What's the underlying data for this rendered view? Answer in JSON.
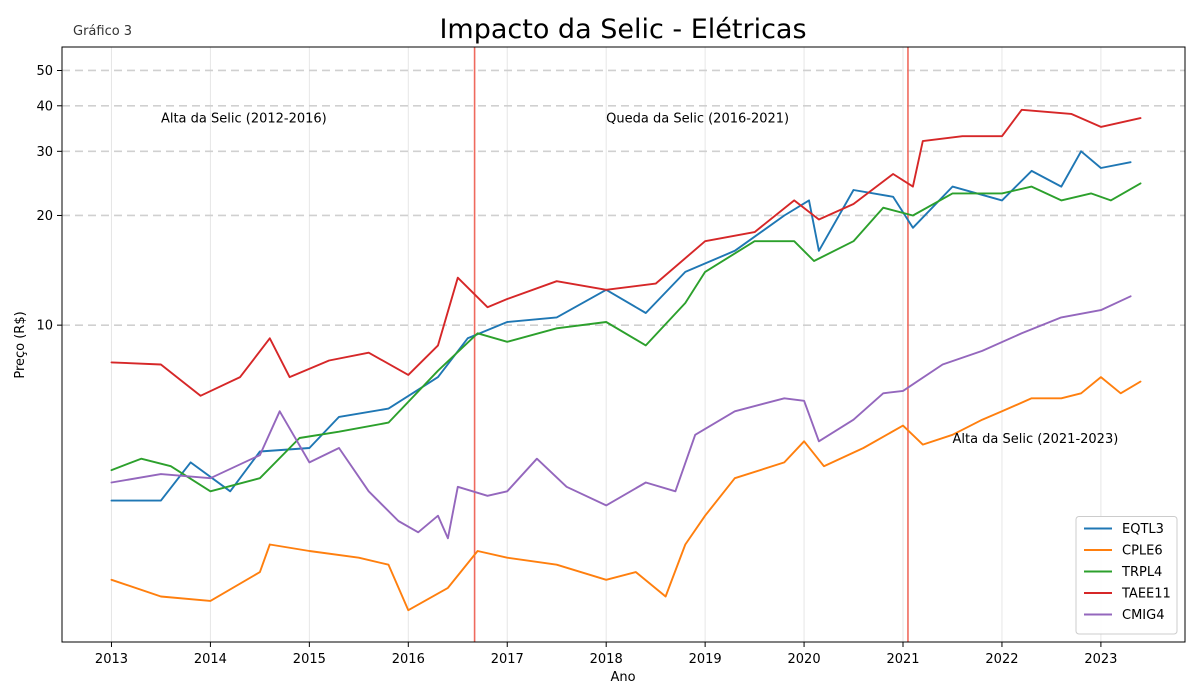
{
  "chart_data": {
    "type": "line",
    "title": "Impacto da Selic - Elétricas",
    "subtitle": "Gráfico 3",
    "xlabel": "Ano",
    "ylabel": "Preço (R$)",
    "y_scale": "log",
    "ylim": [
      1.35,
      58
    ],
    "y_ticks": [
      10,
      20,
      30,
      40,
      50
    ],
    "xlim": [
      2012.5,
      2023.85
    ],
    "x_ticks": [
      "2013",
      "2014",
      "2015",
      "2016",
      "2017",
      "2018",
      "2019",
      "2020",
      "2021",
      "2022",
      "2023"
    ],
    "grid": "dashed horizontal at labeled y ticks",
    "vertical_lines": [
      {
        "x": 2016.67,
        "color": "#ef6a5e"
      },
      {
        "x": 2021.05,
        "color": "#ef6a5e"
      }
    ],
    "annotations": [
      {
        "text": "Alta da Selic (2012-2016)",
        "x": 2013.5,
        "y": 36
      },
      {
        "text": "Queda da Selic (2016-2021)",
        "x": 2018.0,
        "y": 36
      },
      {
        "text": "Alta da Selic (2021-2023)",
        "x": 2021.5,
        "y": 4.75
      }
    ],
    "legend_position": "lower-right",
    "series": [
      {
        "name": "EQTL3",
        "color": "#1f77b4",
        "points": [
          [
            2013.0,
            3.3
          ],
          [
            2013.5,
            3.3
          ],
          [
            2013.8,
            4.2
          ],
          [
            2014.2,
            3.5
          ],
          [
            2014.5,
            4.5
          ],
          [
            2015.0,
            4.6
          ],
          [
            2015.3,
            5.6
          ],
          [
            2015.8,
            5.9
          ],
          [
            2016.3,
            7.2
          ],
          [
            2016.6,
            9.2
          ],
          [
            2017.0,
            10.2
          ],
          [
            2017.5,
            10.5
          ],
          [
            2018.0,
            12.5
          ],
          [
            2018.4,
            10.8
          ],
          [
            2018.8,
            14
          ],
          [
            2019.3,
            16
          ],
          [
            2019.8,
            20
          ],
          [
            2020.05,
            22
          ],
          [
            2020.15,
            16
          ],
          [
            2020.5,
            23.5
          ],
          [
            2020.9,
            22.5
          ],
          [
            2021.1,
            18.5
          ],
          [
            2021.5,
            24
          ],
          [
            2022.0,
            22
          ],
          [
            2022.3,
            26.5
          ],
          [
            2022.6,
            24
          ],
          [
            2022.8,
            30
          ],
          [
            2023.0,
            27
          ],
          [
            2023.3,
            28
          ]
        ]
      },
      {
        "name": "CPLE6",
        "color": "#ff7f0e",
        "points": [
          [
            2013.0,
            2.0
          ],
          [
            2013.5,
            1.8
          ],
          [
            2014.0,
            1.75
          ],
          [
            2014.5,
            2.1
          ],
          [
            2014.6,
            2.5
          ],
          [
            2015.0,
            2.4
          ],
          [
            2015.5,
            2.3
          ],
          [
            2015.8,
            2.2
          ],
          [
            2016.0,
            1.65
          ],
          [
            2016.4,
            1.9
          ],
          [
            2016.7,
            2.4
          ],
          [
            2017.0,
            2.3
          ],
          [
            2017.5,
            2.2
          ],
          [
            2018.0,
            2.0
          ],
          [
            2018.3,
            2.1
          ],
          [
            2018.6,
            1.8
          ],
          [
            2018.8,
            2.5
          ],
          [
            2019.0,
            3.0
          ],
          [
            2019.3,
            3.8
          ],
          [
            2019.8,
            4.2
          ],
          [
            2020.0,
            4.8
          ],
          [
            2020.2,
            4.1
          ],
          [
            2020.6,
            4.6
          ],
          [
            2021.0,
            5.3
          ],
          [
            2021.2,
            4.7
          ],
          [
            2021.5,
            5.0
          ],
          [
            2021.8,
            5.5
          ],
          [
            2022.0,
            5.8
          ],
          [
            2022.3,
            6.3
          ],
          [
            2022.6,
            6.3
          ],
          [
            2022.8,
            6.5
          ],
          [
            2023.0,
            7.2
          ],
          [
            2023.2,
            6.5
          ],
          [
            2023.4,
            7.0
          ]
        ]
      },
      {
        "name": "TRPL4",
        "color": "#2ca02c",
        "points": [
          [
            2013.0,
            4.0
          ],
          [
            2013.3,
            4.3
          ],
          [
            2013.6,
            4.1
          ],
          [
            2014.0,
            3.5
          ],
          [
            2014.5,
            3.8
          ],
          [
            2014.9,
            4.9
          ],
          [
            2015.3,
            5.1
          ],
          [
            2015.8,
            5.4
          ],
          [
            2016.3,
            7.5
          ],
          [
            2016.7,
            9.5
          ],
          [
            2017.0,
            9.0
          ],
          [
            2017.5,
            9.8
          ],
          [
            2018.0,
            10.2
          ],
          [
            2018.4,
            8.8
          ],
          [
            2018.8,
            11.5
          ],
          [
            2019.0,
            14
          ],
          [
            2019.5,
            17
          ],
          [
            2019.9,
            17
          ],
          [
            2020.1,
            15
          ],
          [
            2020.5,
            17
          ],
          [
            2020.8,
            21
          ],
          [
            2021.1,
            20
          ],
          [
            2021.5,
            23
          ],
          [
            2022.0,
            23
          ],
          [
            2022.3,
            24
          ],
          [
            2022.6,
            22
          ],
          [
            2022.9,
            23
          ],
          [
            2023.1,
            22
          ],
          [
            2023.4,
            24.5
          ]
        ]
      },
      {
        "name": "TAEE11",
        "color": "#d62728",
        "points": [
          [
            2013.0,
            7.9
          ],
          [
            2013.5,
            7.8
          ],
          [
            2013.9,
            6.4
          ],
          [
            2014.3,
            7.2
          ],
          [
            2014.6,
            9.2
          ],
          [
            2014.8,
            7.2
          ],
          [
            2015.2,
            8.0
          ],
          [
            2015.6,
            8.4
          ],
          [
            2016.0,
            7.3
          ],
          [
            2016.3,
            8.8
          ],
          [
            2016.5,
            13.5
          ],
          [
            2016.8,
            11.2
          ],
          [
            2017.0,
            11.8
          ],
          [
            2017.5,
            13.2
          ],
          [
            2018.0,
            12.5
          ],
          [
            2018.5,
            13
          ],
          [
            2019.0,
            17
          ],
          [
            2019.5,
            18
          ],
          [
            2019.9,
            22
          ],
          [
            2020.15,
            19.5
          ],
          [
            2020.5,
            21.5
          ],
          [
            2020.9,
            26
          ],
          [
            2021.1,
            24
          ],
          [
            2021.2,
            32
          ],
          [
            2021.6,
            33
          ],
          [
            2022.0,
            33
          ],
          [
            2022.2,
            39
          ],
          [
            2022.7,
            38
          ],
          [
            2023.0,
            35
          ],
          [
            2023.4,
            37
          ]
        ]
      },
      {
        "name": "CMIG4",
        "color": "#9467bd",
        "points": [
          [
            2013.0,
            3.7
          ],
          [
            2013.5,
            3.9
          ],
          [
            2014.0,
            3.8
          ],
          [
            2014.5,
            4.4
          ],
          [
            2014.7,
            5.8
          ],
          [
            2015.0,
            4.2
          ],
          [
            2015.3,
            4.6
          ],
          [
            2015.6,
            3.5
          ],
          [
            2015.9,
            2.9
          ],
          [
            2016.1,
            2.7
          ],
          [
            2016.3,
            3.0
          ],
          [
            2016.4,
            2.6
          ],
          [
            2016.5,
            3.6
          ],
          [
            2016.8,
            3.4
          ],
          [
            2017.0,
            3.5
          ],
          [
            2017.3,
            4.3
          ],
          [
            2017.6,
            3.6
          ],
          [
            2018.0,
            3.2
          ],
          [
            2018.4,
            3.7
          ],
          [
            2018.7,
            3.5
          ],
          [
            2018.9,
            5.0
          ],
          [
            2019.3,
            5.8
          ],
          [
            2019.8,
            6.3
          ],
          [
            2020.0,
            6.2
          ],
          [
            2020.15,
            4.8
          ],
          [
            2020.5,
            5.5
          ],
          [
            2020.8,
            6.5
          ],
          [
            2021.0,
            6.6
          ],
          [
            2021.4,
            7.8
          ],
          [
            2021.8,
            8.5
          ],
          [
            2022.2,
            9.5
          ],
          [
            2022.6,
            10.5
          ],
          [
            2023.0,
            11.0
          ],
          [
            2023.3,
            12.0
          ]
        ]
      }
    ]
  }
}
